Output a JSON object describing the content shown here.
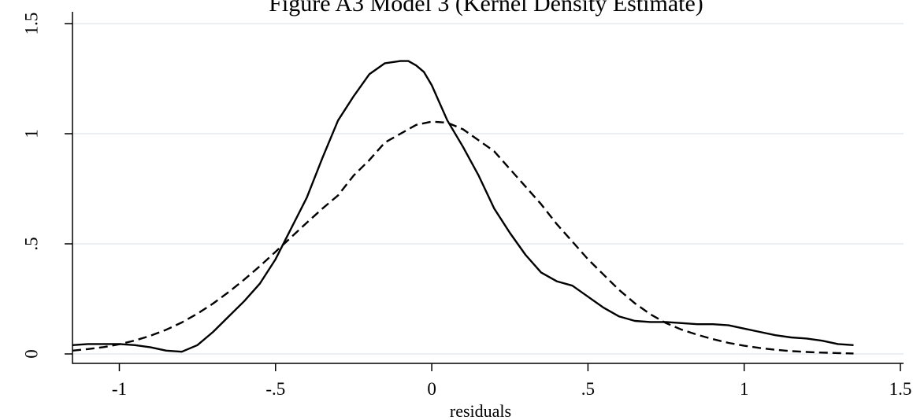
{
  "chart_data": {
    "type": "line",
    "title": "Figure A3 Model 3 (Kernel Density Estimate)",
    "xlabel": "residuals",
    "ylabel": "",
    "xlim": [
      -1.15,
      1.5
    ],
    "ylim": [
      0,
      1.5
    ],
    "xticks": [
      -1,
      -0.5,
      0,
      0.5,
      1,
      1.5
    ],
    "xtick_labels": [
      "-1",
      "-.5",
      "0",
      ".5",
      "1",
      "1.5"
    ],
    "yticks": [
      0,
      0.5,
      1,
      1.5
    ],
    "ytick_labels": [
      "0",
      ".5",
      "1",
      "1.5"
    ],
    "grid": "horizontal",
    "legend": "none",
    "series": [
      {
        "style": "solid",
        "x": [
          -1.15,
          -1.1,
          -1.05,
          -1.0,
          -0.95,
          -0.9,
          -0.85,
          -0.8,
          -0.75,
          -0.7,
          -0.65,
          -0.6,
          -0.55,
          -0.5,
          -0.45,
          -0.4,
          -0.35,
          -0.3,
          -0.25,
          -0.2,
          -0.15,
          -0.1,
          -0.075,
          -0.05,
          -0.025,
          0.0,
          0.05,
          0.1,
          0.15,
          0.2,
          0.25,
          0.3,
          0.35,
          0.4,
          0.45,
          0.5,
          0.55,
          0.6,
          0.65,
          0.7,
          0.75,
          0.8,
          0.85,
          0.9,
          0.95,
          1.0,
          1.05,
          1.1,
          1.15,
          1.2,
          1.25,
          1.3,
          1.35
        ],
        "y": [
          0.04,
          0.045,
          0.045,
          0.045,
          0.04,
          0.03,
          0.015,
          0.01,
          0.04,
          0.1,
          0.17,
          0.24,
          0.32,
          0.43,
          0.57,
          0.71,
          0.89,
          1.06,
          1.17,
          1.27,
          1.32,
          1.33,
          1.33,
          1.31,
          1.28,
          1.22,
          1.06,
          0.94,
          0.81,
          0.66,
          0.55,
          0.45,
          0.37,
          0.33,
          0.31,
          0.26,
          0.21,
          0.17,
          0.15,
          0.145,
          0.145,
          0.14,
          0.135,
          0.135,
          0.13,
          0.115,
          0.1,
          0.085,
          0.075,
          0.07,
          0.06,
          0.045,
          0.04
        ]
      },
      {
        "style": "dashed",
        "x": [
          -1.15,
          -1.1,
          -1.05,
          -1.0,
          -0.95,
          -0.9,
          -0.85,
          -0.8,
          -0.75,
          -0.7,
          -0.65,
          -0.6,
          -0.55,
          -0.5,
          -0.45,
          -0.4,
          -0.35,
          -0.3,
          -0.25,
          -0.2,
          -0.15,
          -0.1,
          -0.05,
          0.0,
          0.05,
          0.1,
          0.15,
          0.2,
          0.25,
          0.3,
          0.35,
          0.4,
          0.45,
          0.5,
          0.55,
          0.6,
          0.65,
          0.7,
          0.75,
          0.8,
          0.85,
          0.9,
          0.95,
          1.0,
          1.05,
          1.1,
          1.15,
          1.2,
          1.25,
          1.3,
          1.35
        ],
        "y": [
          0.015,
          0.022,
          0.031,
          0.044,
          0.061,
          0.083,
          0.11,
          0.143,
          0.183,
          0.229,
          0.281,
          0.338,
          0.399,
          0.464,
          0.53,
          0.596,
          0.66,
          0.72,
          0.81,
          0.88,
          0.96,
          1.0,
          1.04,
          1.055,
          1.05,
          1.02,
          0.97,
          0.92,
          0.84,
          0.76,
          0.68,
          0.59,
          0.51,
          0.43,
          0.36,
          0.29,
          0.23,
          0.18,
          0.14,
          0.11,
          0.087,
          0.067,
          0.05,
          0.037,
          0.027,
          0.019,
          0.013,
          0.009,
          0.006,
          0.004,
          0.002
        ]
      }
    ]
  }
}
